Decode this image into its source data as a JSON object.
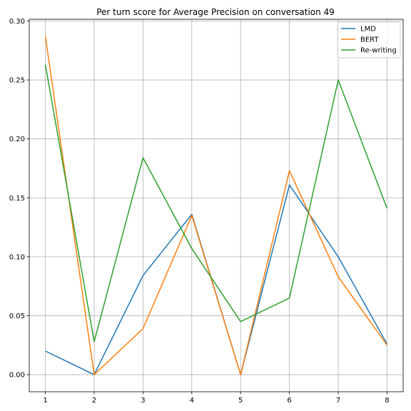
{
  "chart_data": {
    "type": "line",
    "title": "Per turn score for Average Precision on conversation 49",
    "xlabel": "",
    "ylabel": "",
    "x": [
      1,
      2,
      3,
      4,
      5,
      6,
      7,
      8
    ],
    "xlim": [
      0.67,
      8.33
    ],
    "ylim": [
      -0.0145,
      0.3015
    ],
    "x_ticks": [
      "1",
      "2",
      "3",
      "4",
      "5",
      "6",
      "7",
      "8"
    ],
    "y_ticks": [
      "0.00",
      "0.05",
      "0.10",
      "0.15",
      "0.20",
      "0.25",
      "0.30"
    ],
    "grid": true,
    "legend_position": "top-right",
    "series": [
      {
        "name": "LMD",
        "color": "#1f77b4",
        "values": [
          0.02,
          0.0,
          0.084,
          0.136,
          0.0,
          0.161,
          0.1,
          0.026
        ]
      },
      {
        "name": "BERT",
        "color": "#ff7f0e",
        "values": [
          0.287,
          0.0,
          0.039,
          0.135,
          0.0,
          0.173,
          0.083,
          0.025
        ]
      },
      {
        "name": "Re-writing",
        "color": "#2ca02c",
        "values": [
          0.263,
          0.028,
          0.184,
          0.107,
          0.045,
          0.065,
          0.25,
          0.141
        ]
      }
    ]
  }
}
